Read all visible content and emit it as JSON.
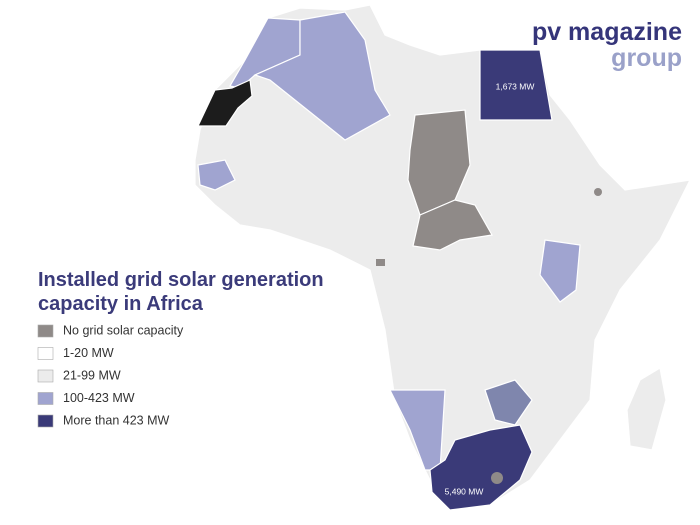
{
  "logo": {
    "line1": "pv magazine",
    "line2": "group"
  },
  "legend": {
    "title_lines": [
      "Installed grid solar generation",
      "capacity in Africa"
    ],
    "items": [
      {
        "label": "No grid solar capacity",
        "color": "#8f8a88"
      },
      {
        "label": "1-20 MW",
        "color": "#ffffff"
      },
      {
        "label": "21-99 MW",
        "color": "#ececec"
      },
      {
        "label": "100-423 MW",
        "color": "#a0a4d0"
      },
      {
        "label": "More than 423 MW",
        "color": "#3a3a78"
      }
    ]
  },
  "annotations": [
    {
      "text": "1,673 MW"
    },
    {
      "text": "5,490 MW"
    }
  ]
}
